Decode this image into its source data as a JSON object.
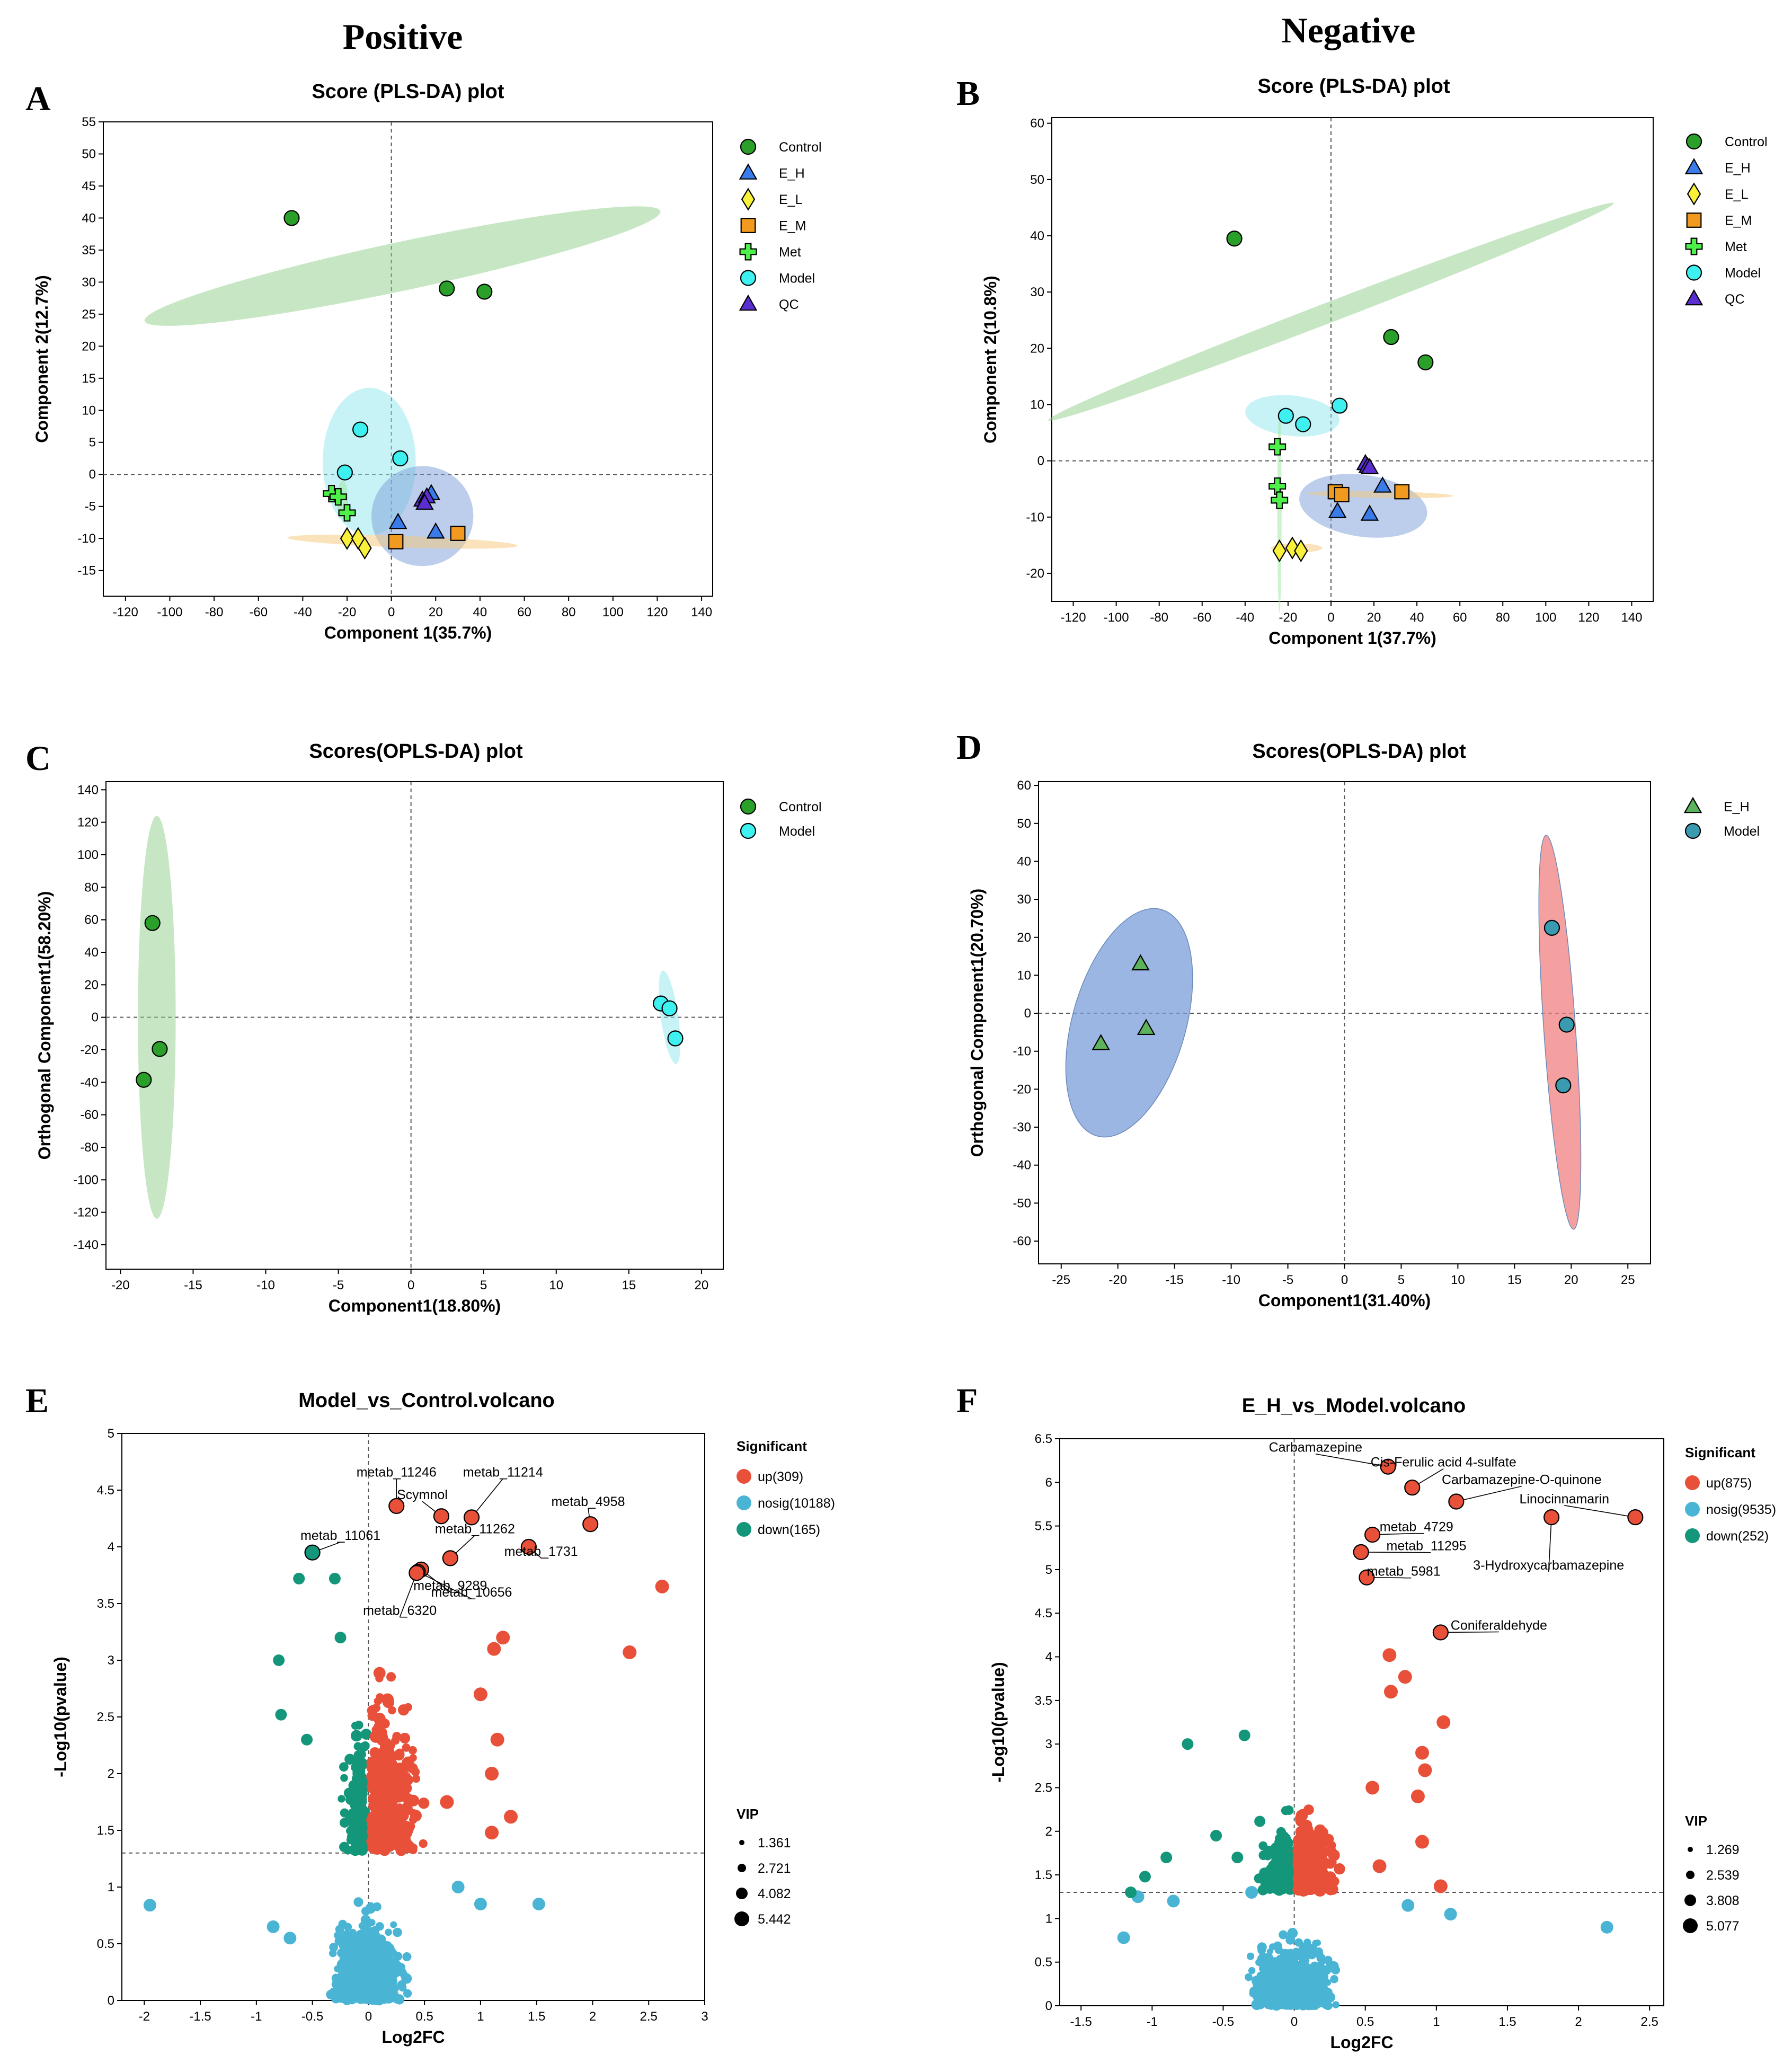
{
  "headers": {
    "left": "Positive",
    "right": "Negative"
  },
  "colors": {
    "Control": "#2aa02a",
    "E_H": "#3a7bea",
    "E_L": "#f8f03a",
    "E_M": "#f29a20",
    "Met": "#4ef04a",
    "Model": "#3ff0f0",
    "QC": "#5a2ed0",
    "ctrlFill": "#8fd08a",
    "modelFill": "#8fe8f0",
    "ehFill": "#7a9ed8",
    "up": "#e8503a",
    "nosig": "#4ab4d4",
    "down": "#14967a"
  },
  "chart_data": [
    {
      "id": "A",
      "type": "scatter",
      "letter": "A",
      "title": "Score (PLS-DA) plot",
      "xlabel": "Component 1(35.7%)",
      "ylabel": "Component 2(12.7%)",
      "xlim": [
        -130,
        145
      ],
      "ylim": [
        -19,
        55
      ],
      "xticks": [
        -120,
        -100,
        -80,
        -60,
        -40,
        -20,
        0,
        20,
        40,
        60,
        80,
        100,
        120,
        140
      ],
      "yticks": [
        -15,
        -10,
        -5,
        0,
        5,
        10,
        15,
        20,
        25,
        30,
        35,
        40,
        45,
        50,
        55
      ],
      "legend": [
        "Control",
        "E_H",
        "E_L",
        "E_M",
        "Met",
        "Model",
        "QC"
      ],
      "ellipses": [
        {
          "group": "Control",
          "cx": 5,
          "cy": 32.5,
          "rx": 119,
          "ry": 3.8,
          "angle": -12
        },
        {
          "group": "Model",
          "cx": -10,
          "cy": 2,
          "rx": 21,
          "ry": 11.5,
          "angle": 0
        },
        {
          "group": "E_H",
          "cx": 14,
          "cy": -6.5,
          "rx": 23,
          "ry": 7.8,
          "angle": -8
        },
        {
          "group": "E_L",
          "cx": 5,
          "cy": -10.5,
          "rx": 52,
          "ry": 0.9,
          "angle": 2
        },
        {
          "group": "Met",
          "cx": -22,
          "cy": -4,
          "rx": 2.5,
          "ry": 3,
          "angle": 0
        }
      ],
      "series": [
        {
          "name": "Control",
          "marker": "circle",
          "points": [
            [
              -45,
              40
            ],
            [
              25,
              29
            ],
            [
              42,
              28.5
            ]
          ]
        },
        {
          "name": "Model",
          "marker": "circle",
          "points": [
            [
              -14,
              7
            ],
            [
              4,
              2.5
            ],
            [
              -21,
              0.3
            ]
          ]
        },
        {
          "name": "E_H",
          "marker": "triangle",
          "points": [
            [
              3,
              -7.5
            ],
            [
              20,
              -9
            ],
            [
              18,
              -3
            ]
          ]
        },
        {
          "name": "E_L",
          "marker": "diamond",
          "points": [
            [
              -20,
              -10
            ],
            [
              -15,
              -10
            ],
            [
              -12,
              -11.5
            ]
          ]
        },
        {
          "name": "E_M",
          "marker": "square",
          "points": [
            [
              2,
              -10.5
            ],
            [
              30,
              -9.2
            ]
          ]
        },
        {
          "name": "Met",
          "marker": "cross",
          "points": [
            [
              -27,
              -3
            ],
            [
              -24,
              -3.5
            ],
            [
              -20,
              -6
            ]
          ]
        },
        {
          "name": "QC",
          "marker": "triangle",
          "points": [
            [
              14,
              -4
            ],
            [
              16,
              -3.5
            ],
            [
              15,
              -4.5
            ]
          ]
        }
      ]
    },
    {
      "id": "B",
      "type": "scatter",
      "letter": "B",
      "title": "Score (PLS-DA) plot",
      "xlabel": "Component 1(37.7%)",
      "ylabel": "Component 2(10.8%)",
      "xlim": [
        -130,
        150
      ],
      "ylim": [
        -25,
        61
      ],
      "xticks": [
        -120,
        -100,
        -80,
        -60,
        -40,
        -20,
        0,
        20,
        40,
        60,
        80,
        100,
        120,
        140
      ],
      "yticks": [
        -20,
        -10,
        0,
        10,
        20,
        30,
        40,
        50,
        60
      ],
      "legend": [
        "Control",
        "E_H",
        "E_L",
        "E_M",
        "Met",
        "Model",
        "QC"
      ],
      "ellipses": [
        {
          "group": "Control",
          "cx": 0,
          "cy": 26.5,
          "rx": 141,
          "ry": 1.8,
          "angle": -21
        },
        {
          "group": "Model",
          "cx": -18,
          "cy": 8,
          "rx": 22,
          "ry": 3.6,
          "angle": 6
        },
        {
          "group": "E_H",
          "cx": 15,
          "cy": -8,
          "rx": 30,
          "ry": 5.5,
          "angle": 8
        },
        {
          "group": "E_M",
          "cx": 23,
          "cy": -6,
          "rx": 34,
          "ry": 0.6,
          "angle": 1
        },
        {
          "group": "Met",
          "cx": -24,
          "cy": -9,
          "rx": 1,
          "ry": 18,
          "angle": 0
        },
        {
          "group": "E_L",
          "cx": -16,
          "cy": -15.5,
          "rx": 12,
          "ry": 0.8,
          "angle": 0
        }
      ],
      "series": [
        {
          "name": "Control",
          "marker": "circle",
          "points": [
            [
              -45,
              39.5
            ],
            [
              28,
              22
            ],
            [
              44,
              17.5
            ]
          ]
        },
        {
          "name": "Model",
          "marker": "circle",
          "points": [
            [
              -21,
              8
            ],
            [
              -13,
              6.5
            ],
            [
              4,
              9.8
            ]
          ]
        },
        {
          "name": "Met",
          "marker": "cross",
          "points": [
            [
              -25,
              2.5
            ],
            [
              -25,
              -4.5
            ],
            [
              -24,
              -7
            ]
          ]
        },
        {
          "name": "E_H",
          "marker": "triangle",
          "points": [
            [
              3,
              -9
            ],
            [
              24,
              -4.5
            ],
            [
              18,
              -9.5
            ]
          ]
        },
        {
          "name": "E_M",
          "marker": "square",
          "points": [
            [
              2,
              -5.5
            ],
            [
              5,
              -6
            ],
            [
              33,
              -5.5
            ]
          ]
        },
        {
          "name": "QC",
          "marker": "triangle",
          "points": [
            [
              16,
              -0.5
            ],
            [
              17,
              -1
            ],
            [
              18,
              -1.2
            ]
          ]
        },
        {
          "name": "E_L",
          "marker": "diamond",
          "points": [
            [
              -24,
              -16
            ],
            [
              -18,
              -15.5
            ],
            [
              -14,
              -16
            ]
          ]
        }
      ]
    },
    {
      "id": "C",
      "type": "scatter",
      "letter": "C",
      "title": "Scores(OPLS-DA) plot",
      "xlabel": "Component1(18.80%)",
      "ylabel": "Orthogonal Component1(58.20%)",
      "xlim": [
        -21,
        21.5
      ],
      "ylim": [
        -155,
        145
      ],
      "xticks": [
        -20,
        -15,
        -10,
        -5,
        0,
        5,
        10,
        15,
        20
      ],
      "yticks": [
        -140,
        -120,
        -100,
        -80,
        -60,
        -40,
        -20,
        0,
        20,
        40,
        60,
        80,
        100,
        120,
        140
      ],
      "legend": [
        "Control",
        "Model"
      ],
      "ellipses": [
        {
          "group": "Control",
          "cx": -17.5,
          "cy": 0,
          "rx": 1.3,
          "ry": 124,
          "angle": 0
        },
        {
          "group": "Model",
          "cx": 17.8,
          "cy": 0,
          "rx": 0.6,
          "ry": 29,
          "angle": -8
        }
      ],
      "series": [
        {
          "name": "Control",
          "marker": "circle",
          "points": [
            [
              -17.8,
              58
            ],
            [
              -17.3,
              -19.5
            ],
            [
              -18.4,
              -38.5
            ]
          ]
        },
        {
          "name": "Model",
          "marker": "circle",
          "points": [
            [
              17.2,
              8.5
            ],
            [
              17.8,
              5.5
            ],
            [
              18.2,
              -13
            ]
          ]
        }
      ]
    },
    {
      "id": "D",
      "type": "scatter",
      "letter": "D",
      "title": "Scores(OPLS-DA) plot",
      "xlabel": "Component1(31.40%)",
      "ylabel": "Orthogonal Component1(20.70%)",
      "xlim": [
        -27,
        27
      ],
      "ylim": [
        -66,
        61
      ],
      "xticks": [
        -25,
        -20,
        -15,
        -10,
        -5,
        0,
        5,
        10,
        15,
        20,
        25
      ],
      "yticks": [
        -60,
        -50,
        -40,
        -30,
        -20,
        -10,
        0,
        10,
        20,
        30,
        40,
        50,
        60
      ],
      "legend": [
        "E_H",
        "Model"
      ],
      "ellipses": [
        {
          "group": "E_H",
          "cx": -19,
          "cy": -2.5,
          "rx": 5,
          "ry": 31,
          "angle": 16
        },
        {
          "group": "Model",
          "cx": 19,
          "cy": -5,
          "rx": 1.4,
          "ry": 52,
          "angle": -4
        }
      ],
      "series": [
        {
          "name": "E_H",
          "marker": "triangle",
          "points": [
            [
              -18,
              13
            ],
            [
              -17.5,
              -4
            ],
            [
              -21.5,
              -8
            ]
          ]
        },
        {
          "name": "Model",
          "marker": "circle",
          "points": [
            [
              18.3,
              22.5
            ],
            [
              19.6,
              -3
            ],
            [
              19.3,
              -19
            ]
          ]
        }
      ]
    },
    {
      "id": "E",
      "type": "scatter",
      "letter": "E",
      "title": "Model_vs_Control.volcano",
      "xlabel": "Log2FC",
      "ylabel": "-Log10(pvalue)",
      "xlim": [
        -2.2,
        3.0
      ],
      "ylim": [
        0,
        5
      ],
      "xticks": [
        -2,
        -1.5,
        -1,
        -0.5,
        0,
        0.5,
        1,
        1.5,
        2,
        2.5,
        3
      ],
      "yticks": [
        0,
        0.5,
        1,
        1.5,
        2,
        2.5,
        3,
        3.5,
        4,
        4.5,
        5
      ],
      "threshold_y": 1.3,
      "threshold_x": 0,
      "legend_title": "Significant",
      "legend": [
        {
          "cls": "up",
          "label": "up(309)"
        },
        {
          "cls": "nosig",
          "label": "nosig(10188)"
        },
        {
          "cls": "down",
          "label": "down(165)"
        }
      ],
      "vip_title": "VIP",
      "vip": [
        "1.361",
        "2.721",
        "4.082",
        "5.442"
      ],
      "labeled": [
        {
          "label": "metab_11246",
          "x": 0.25,
          "y": 4.36,
          "tx": 0.25,
          "ty": 4.62
        },
        {
          "label": "metab_11214",
          "x": 0.92,
          "y": 4.26,
          "tx": 1.2,
          "ty": 4.62
        },
        {
          "label": "Scymnol",
          "x": 0.65,
          "y": 4.27,
          "tx": 0.48,
          "ty": 4.42
        },
        {
          "label": "metab_4958",
          "x": 1.98,
          "y": 4.2,
          "tx": 1.96,
          "ty": 4.36
        },
        {
          "label": "metab_11262",
          "x": 0.73,
          "y": 3.9,
          "tx": 0.95,
          "ty": 4.12
        },
        {
          "label": "metab_1731",
          "x": 1.43,
          "y": 4.0,
          "tx": 1.54,
          "ty": 3.92
        },
        {
          "label": "metab_11061",
          "x": -0.5,
          "y": 3.95,
          "tx": -0.25,
          "ty": 4.06
        },
        {
          "label": "metab_9289",
          "x": 0.47,
          "y": 3.8,
          "tx": 0.73,
          "ty": 3.62
        },
        {
          "label": "metab_10656",
          "x": 0.44,
          "y": 3.78,
          "tx": 0.92,
          "ty": 3.56
        },
        {
          "label": "metab_6320",
          "x": 0.43,
          "y": 3.77,
          "tx": 0.28,
          "ty": 3.4
        }
      ]
    },
    {
      "id": "F",
      "type": "scatter",
      "letter": "F",
      "title": "E_H_vs_Model.volcano",
      "xlabel": "Log2FC",
      "ylabel": "-Log10(pvalue)",
      "xlim": [
        -1.65,
        2.6
      ],
      "ylim": [
        0,
        6.5
      ],
      "xticks": [
        -1.5,
        -1,
        -0.5,
        0,
        0.5,
        1,
        1.5,
        2,
        2.5
      ],
      "yticks": [
        0,
        0.5,
        1,
        1.5,
        2,
        2.5,
        3,
        3.5,
        4,
        4.5,
        5,
        5.5,
        6,
        6.5
      ],
      "threshold_y": 1.3,
      "threshold_x": 0,
      "legend_title": "Significant",
      "legend": [
        {
          "cls": "up",
          "label": "up(875)"
        },
        {
          "cls": "nosig",
          "label": "nosig(9535)"
        },
        {
          "cls": "down",
          "label": "down(252)"
        }
      ],
      "vip_title": "VIP",
      "vip": [
        "1.269",
        "2.539",
        "3.808",
        "5.077"
      ],
      "labeled": [
        {
          "label": "Carbamazepine",
          "x": 0.66,
          "y": 6.18,
          "tx": 0.15,
          "ty": 6.35
        },
        {
          "label": "Cis-Ferulic acid 4-sulfate",
          "x": 0.83,
          "y": 5.94,
          "tx": 1.05,
          "ty": 6.18
        },
        {
          "label": "Carbamazepine-O-quinone",
          "x": 1.14,
          "y": 5.78,
          "tx": 1.6,
          "ty": 5.98
        },
        {
          "label": "Linocinnamarin",
          "x": 2.4,
          "y": 5.6,
          "tx": 1.9,
          "ty": 5.76
        },
        {
          "label": "metab_4729",
          "x": 0.55,
          "y": 5.4,
          "tx": 0.86,
          "ty": 5.44
        },
        {
          "label": "metab_11295",
          "x": 0.47,
          "y": 5.2,
          "tx": 0.93,
          "ty": 5.22
        },
        {
          "label": "metab_5981",
          "x": 0.51,
          "y": 4.91,
          "tx": 0.77,
          "ty": 4.93
        },
        {
          "label": "3-Hydroxycarbamazepine",
          "x": 1.81,
          "y": 5.6,
          "tx": 1.79,
          "ty": 5.0
        },
        {
          "label": "Coniferaldehyde",
          "x": 1.03,
          "y": 4.28,
          "tx": 1.44,
          "ty": 4.31
        }
      ]
    }
  ]
}
